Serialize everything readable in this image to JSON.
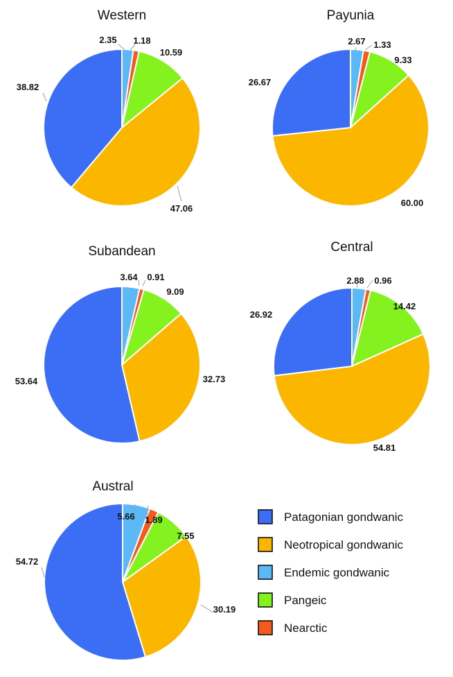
{
  "categories": [
    "Patagonian gondwanic",
    "Neotropical gondwanic",
    "Endemic gondwanic",
    "Pangeic",
    "Nearctic"
  ],
  "colors": {
    "Patagonian gondwanic": "#3b6ef5",
    "Neotropical gondwanic": "#fbb600",
    "Endemic gondwanic": "#5cb9f7",
    "Pangeic": "#84f21e",
    "Nearctic": "#f45a1c"
  },
  "legend": {
    "items": [
      "Patagonian gondwanic",
      "Neotropical gondwanic",
      "Endemic gondwanic",
      "Pangeic",
      "Nearctic"
    ]
  },
  "chart_data": [
    {
      "type": "pie",
      "title": "Western",
      "labels": [
        "Endemic gondwanic",
        "Nearctic",
        "Pangeic",
        "Neotropical gondwanic",
        "Patagonian gondwanic"
      ],
      "values": [
        2.35,
        1.18,
        10.59,
        47.06,
        38.82
      ],
      "value_labels": [
        "2.35",
        "1.18",
        "10.59",
        "47.06",
        "38.82"
      ]
    },
    {
      "type": "pie",
      "title": "Payunia",
      "labels": [
        "Endemic gondwanic",
        "Nearctic",
        "Pangeic",
        "Neotropical gondwanic",
        "Patagonian gondwanic"
      ],
      "values": [
        2.67,
        1.33,
        9.33,
        60.0,
        26.67
      ],
      "value_labels": [
        "2.67",
        "1.33",
        "9.33",
        "60.00",
        "26.67"
      ]
    },
    {
      "type": "pie",
      "title": "Subandean",
      "labels": [
        "Endemic gondwanic",
        "Nearctic",
        "Pangeic",
        "Neotropical gondwanic",
        "Patagonian gondwanic"
      ],
      "values": [
        3.64,
        0.91,
        9.09,
        32.73,
        53.64
      ],
      "value_labels": [
        "3.64",
        "0.91",
        "9.09",
        "32.73",
        "53.64"
      ]
    },
    {
      "type": "pie",
      "title": "Central",
      "labels": [
        "Endemic gondwanic",
        "Nearctic",
        "Pangeic",
        "Neotropical gondwanic",
        "Patagonian gondwanic"
      ],
      "values": [
        2.88,
        0.96,
        14.42,
        54.81,
        26.92
      ],
      "value_labels": [
        "2.88",
        "0.96",
        "14.42",
        "54.81",
        "26.92"
      ]
    },
    {
      "type": "pie",
      "title": "Austral",
      "labels": [
        "Endemic gondwanic",
        "Nearctic",
        "Pangeic",
        "Neotropical gondwanic",
        "Patagonian gondwanic"
      ],
      "values": [
        5.66,
        1.89,
        7.55,
        30.19,
        54.72
      ],
      "value_labels": [
        "5.66",
        "1.89",
        "7.55",
        "30.19",
        "54.72"
      ]
    }
  ]
}
